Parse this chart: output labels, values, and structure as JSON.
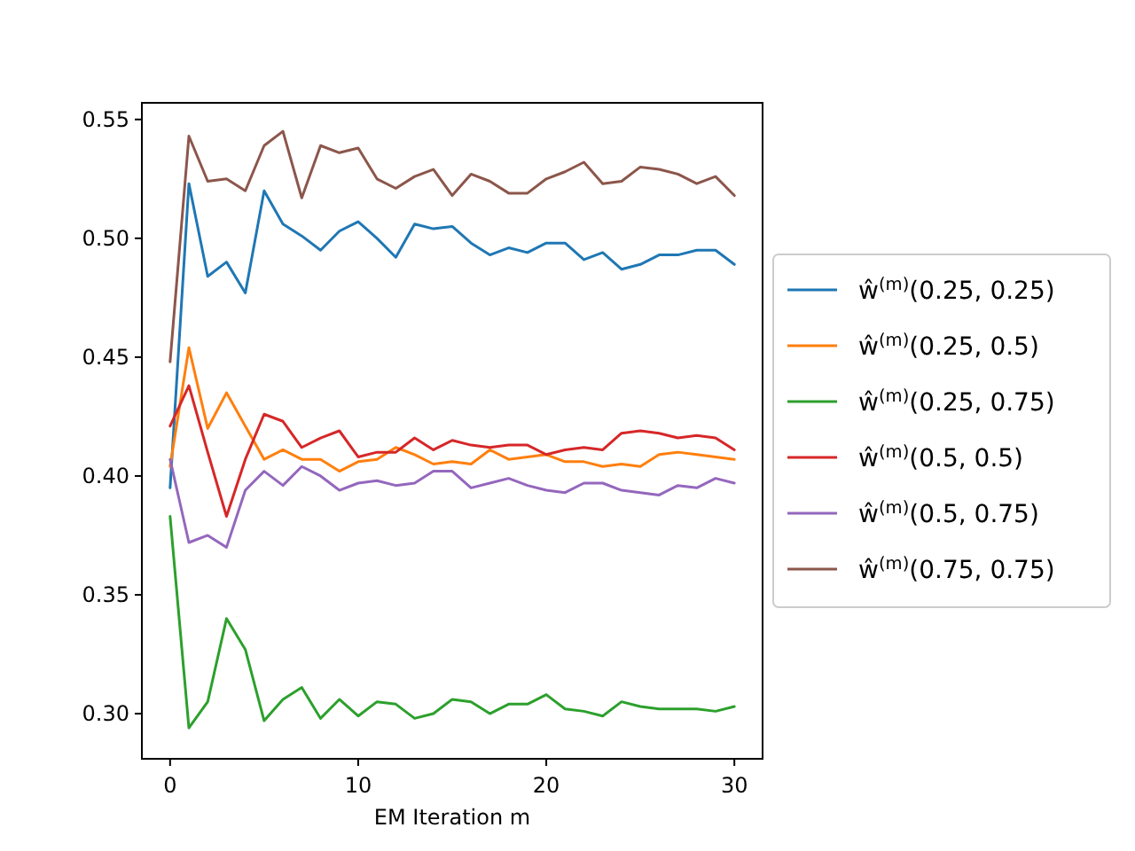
{
  "chart_data": {
    "type": "line",
    "xlabel": "EM Iteration m",
    "x": [
      0,
      1,
      2,
      3,
      4,
      5,
      6,
      7,
      8,
      9,
      10,
      11,
      12,
      13,
      14,
      15,
      16,
      17,
      18,
      19,
      20,
      21,
      22,
      23,
      24,
      25,
      26,
      27,
      28,
      29,
      30
    ],
    "xlim": [
      -1.5,
      31.5
    ],
    "xticks": [
      0,
      10,
      20,
      30
    ],
    "ylim": [
      0.281,
      0.557
    ],
    "yticks": [
      {
        "value": 0.3,
        "label": "0.30"
      },
      {
        "value": 0.35,
        "label": "0.35"
      },
      {
        "value": 0.4,
        "label": "0.40"
      },
      {
        "value": 0.45,
        "label": "0.45"
      },
      {
        "value": 0.5,
        "label": "0.50"
      },
      {
        "value": 0.55,
        "label": "0.55"
      }
    ],
    "legend": "right",
    "grid": false,
    "marker": "none",
    "line_style": "solid",
    "series": [
      {
        "name": "ŵ$^{(m)}$(0.25, 0.25)",
        "color": "#1f77b4",
        "values": [
          0.395,
          0.523,
          0.484,
          0.49,
          0.477,
          0.52,
          0.506,
          0.501,
          0.495,
          0.503,
          0.507,
          0.5,
          0.492,
          0.506,
          0.504,
          0.505,
          0.498,
          0.493,
          0.496,
          0.494,
          0.498,
          0.498,
          0.491,
          0.494,
          0.487,
          0.489,
          0.493,
          0.493,
          0.495,
          0.495,
          0.489
        ]
      },
      {
        "name": "ŵ$^{(m)}$(0.25, 0.5)",
        "color": "#ff7f0e",
        "values": [
          0.404,
          0.454,
          0.42,
          0.435,
          0.421,
          0.407,
          0.411,
          0.407,
          0.407,
          0.402,
          0.406,
          0.407,
          0.412,
          0.409,
          0.405,
          0.406,
          0.405,
          0.411,
          0.407,
          0.408,
          0.409,
          0.406,
          0.406,
          0.404,
          0.405,
          0.404,
          0.409,
          0.41,
          0.409,
          0.408,
          0.407
        ]
      },
      {
        "name": "ŵ$^{(m)}$(0.25, 0.75)",
        "color": "#2ca02c",
        "values": [
          0.383,
          0.294,
          0.305,
          0.34,
          0.327,
          0.297,
          0.306,
          0.311,
          0.298,
          0.306,
          0.299,
          0.305,
          0.304,
          0.298,
          0.3,
          0.306,
          0.305,
          0.3,
          0.304,
          0.304,
          0.308,
          0.302,
          0.301,
          0.299,
          0.305,
          0.303,
          0.302,
          0.302,
          0.302,
          0.301,
          0.303
        ]
      },
      {
        "name": "ŵ$^{(m)}$(0.5, 0.5)",
        "color": "#d62728",
        "values": [
          0.421,
          0.438,
          0.41,
          0.383,
          0.407,
          0.426,
          0.423,
          0.412,
          0.416,
          0.419,
          0.408,
          0.41,
          0.41,
          0.416,
          0.411,
          0.415,
          0.413,
          0.412,
          0.413,
          0.413,
          0.409,
          0.411,
          0.412,
          0.411,
          0.418,
          0.419,
          0.418,
          0.416,
          0.417,
          0.416,
          0.411
        ]
      },
      {
        "name": "ŵ$^{(m)}$(0.5, 0.75)",
        "color": "#9467bd",
        "values": [
          0.407,
          0.372,
          0.375,
          0.37,
          0.394,
          0.402,
          0.396,
          0.404,
          0.4,
          0.394,
          0.397,
          0.398,
          0.396,
          0.397,
          0.402,
          0.402,
          0.395,
          0.397,
          0.399,
          0.396,
          0.394,
          0.393,
          0.397,
          0.397,
          0.394,
          0.393,
          0.392,
          0.396,
          0.395,
          0.399,
          0.397
        ]
      },
      {
        "name": "ŵ$^{(m)}$(0.75, 0.75)",
        "color": "#8c564b",
        "values": [
          0.448,
          0.543,
          0.524,
          0.525,
          0.52,
          0.539,
          0.545,
          0.517,
          0.539,
          0.536,
          0.538,
          0.525,
          0.521,
          0.526,
          0.529,
          0.518,
          0.527,
          0.524,
          0.519,
          0.519,
          0.525,
          0.528,
          0.532,
          0.523,
          0.524,
          0.53,
          0.529,
          0.527,
          0.523,
          0.526,
          0.518
        ]
      }
    ]
  }
}
